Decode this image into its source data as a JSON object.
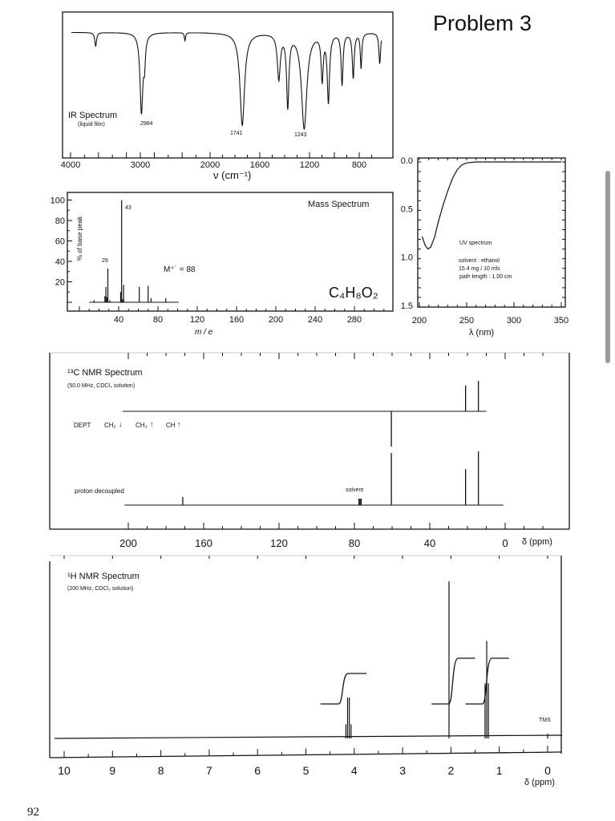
{
  "page": {
    "title": "Problem 3",
    "page_number": "92"
  },
  "chart_data": [
    {
      "type": "line",
      "title": "IR Spectrum",
      "subtitle": "(liquid film)",
      "xlabel": "ν (cm⁻¹)",
      "x_ticks": [
        "4000",
        "3000",
        "2000",
        "1600",
        "1200",
        "800"
      ],
      "xlim": [
        4000,
        600
      ],
      "x_reversed": true,
      "baseline_transmittance": 88,
      "peak_labels": [
        "2984",
        "1741",
        "1243"
      ],
      "peaks": [
        {
          "wavenumber": 3640,
          "transmittance": 78,
          "width": 15
        },
        {
          "wavenumber": 2984,
          "transmittance": 30,
          "width": 25
        },
        {
          "wavenumber": 2940,
          "transmittance": 70,
          "width": 15
        },
        {
          "wavenumber": 2360,
          "transmittance": 82,
          "width": 10
        },
        {
          "wavenumber": 1741,
          "transmittance": 20,
          "width": 22
        },
        {
          "wavenumber": 1447,
          "transmittance": 55,
          "width": 14
        },
        {
          "wavenumber": 1375,
          "transmittance": 35,
          "width": 11
        },
        {
          "wavenumber": 1243,
          "transmittance": 18,
          "width": 26
        },
        {
          "wavenumber": 1098,
          "transmittance": 55,
          "width": 10
        },
        {
          "wavenumber": 1048,
          "transmittance": 38,
          "width": 11
        },
        {
          "wavenumber": 938,
          "transmittance": 50,
          "width": 9
        },
        {
          "wavenumber": 848,
          "transmittance": 55,
          "width": 9
        },
        {
          "wavenumber": 785,
          "transmittance": 62,
          "width": 7
        },
        {
          "wavenumber": 635,
          "transmittance": 65,
          "width": 8
        }
      ]
    },
    {
      "type": "bar",
      "title": "Mass Spectrum",
      "xlabel": "m / e",
      "ylabel": "% of base peak",
      "x_ticks": [
        "40",
        "80",
        "120",
        "160",
        "200",
        "240",
        "280"
      ],
      "y_ticks": [
        "100",
        "80",
        "60",
        "40",
        "20"
      ],
      "ylim": [
        0,
        100
      ],
      "bars": [
        {
          "mz": 15,
          "intensity": 2
        },
        {
          "mz": 26,
          "intensity": 6
        },
        {
          "mz": 27,
          "intensity": 15
        },
        {
          "mz": 28,
          "intensity": 5
        },
        {
          "mz": 29,
          "intensity": 33
        },
        {
          "mz": 31,
          "intensity": 2
        },
        {
          "mz": 42,
          "intensity": 10
        },
        {
          "mz": 43,
          "intensity": 100
        },
        {
          "mz": 44,
          "intensity": 3
        },
        {
          "mz": 45,
          "intensity": 17
        },
        {
          "mz": 61,
          "intensity": 15
        },
        {
          "mz": 70,
          "intensity": 16
        },
        {
          "mz": 73,
          "intensity": 4
        },
        {
          "mz": 88,
          "intensity": 4
        }
      ],
      "annotations": {
        "base_peak": "43",
        "peak_29": "29",
        "molecular_ion": "M⁺˙ = 88",
        "formula": "C₄H₈O₂"
      }
    },
    {
      "type": "line",
      "title": "UV spectrum",
      "solvent": "solvent : ethanol",
      "concentration": "15.4 mg / 10 mls",
      "path_length": "path length : 1.00 cm",
      "xlabel": "λ (nm)",
      "x_ticks": [
        "200",
        "250",
        "300",
        "350"
      ],
      "y_ticks": [
        "0.0",
        "0.5",
        "1.0",
        "1.5"
      ],
      "xlim": [
        200,
        350
      ],
      "ylim": [
        0,
        1.5
      ],
      "y_reversed": true,
      "x": [
        203,
        206,
        209,
        212,
        216,
        220,
        225,
        230,
        235,
        240,
        245,
        250,
        260,
        300,
        350
      ],
      "y": [
        0.77,
        0.86,
        0.9,
        0.88,
        0.78,
        0.62,
        0.45,
        0.3,
        0.17,
        0.08,
        0.03,
        0.01,
        0.0,
        0.0,
        0.0
      ]
    },
    {
      "type": "line",
      "title": "¹³C NMR Spectrum",
      "subtitle": "(50.0 MHz, CDCl₃ solution)",
      "xlabel": "δ (ppm)",
      "x_ticks": [
        "200",
        "160",
        "120",
        "80",
        "40",
        "0"
      ],
      "xlim": [
        210,
        -10
      ],
      "x_reversed": true,
      "dept": {
        "label": "DEPT",
        "ch2": "CH₂",
        "ch3": "CH₃",
        "ch": "CH",
        "peaks": [
          {
            "ppm": 60.4,
            "intensity": -1.0
          },
          {
            "ppm": 21.0,
            "intensity": 0.73
          },
          {
            "ppm": 14.2,
            "intensity": 0.86
          }
        ]
      },
      "decoupled": {
        "label": "proton decoupled",
        "solvent_label": "solvent",
        "peaks": [
          {
            "ppm": 171.1,
            "intensity": 0.15
          },
          {
            "ppm": 77.6,
            "intensity": 0.12
          },
          {
            "ppm": 77.0,
            "intensity": 0.12
          },
          {
            "ppm": 76.4,
            "intensity": 0.12
          },
          {
            "ppm": 60.4,
            "intensity": 0.97
          },
          {
            "ppm": 21.0,
            "intensity": 0.67
          },
          {
            "ppm": 14.2,
            "intensity": 1.0
          }
        ]
      }
    },
    {
      "type": "line",
      "title": "¹H NMR Spectrum",
      "subtitle": "(200 MHz, CDCl₃ solution)",
      "xlabel": "δ (ppm)",
      "x_ticks": [
        "10",
        "9",
        "8",
        "7",
        "6",
        "5",
        "4",
        "3",
        "2",
        "1",
        "0"
      ],
      "xlim": [
        10.3,
        -0.3
      ],
      "x_reversed": true,
      "tms_label": "TMS",
      "lines": [
        {
          "ppm": 4.173,
          "intensity": 0.09
        },
        {
          "ppm": 4.138,
          "intensity": 0.26
        },
        {
          "ppm": 4.102,
          "intensity": 0.26
        },
        {
          "ppm": 4.066,
          "intensity": 0.09
        },
        {
          "ppm": 2.04,
          "intensity": 1.0
        },
        {
          "ppm": 1.295,
          "intensity": 0.35
        },
        {
          "ppm": 1.26,
          "intensity": 0.62
        },
        {
          "ppm": 1.225,
          "intensity": 0.35
        },
        {
          "ppm": 0.0,
          "intensity": 0.03
        }
      ],
      "integrals": [
        {
          "from": 4.7,
          "to": 3.75,
          "relative": 2
        },
        {
          "from": 2.4,
          "to": 1.5,
          "relative": 3
        },
        {
          "from": 1.7,
          "to": 0.8,
          "relative": 3
        }
      ]
    }
  ]
}
